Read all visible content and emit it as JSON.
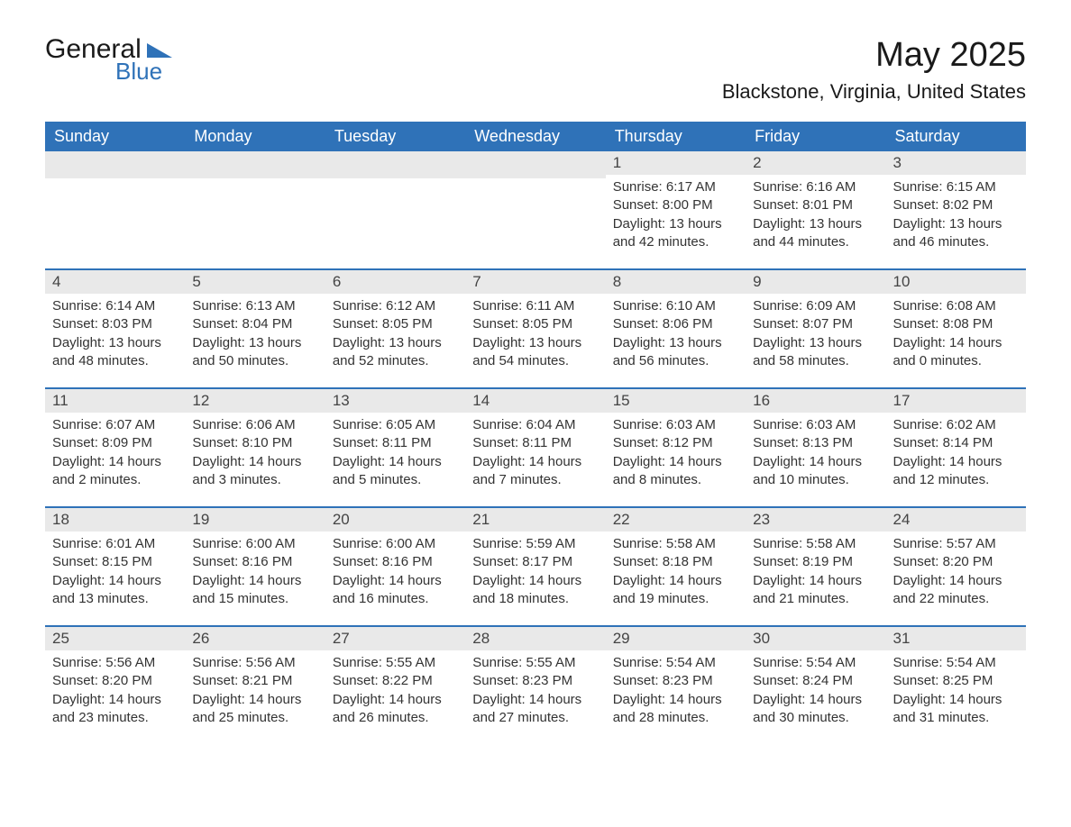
{
  "logo": {
    "general": "General",
    "blue": "Blue"
  },
  "title": "May 2025",
  "location": "Blackstone, Virginia, United States",
  "day_headers": [
    "Sunday",
    "Monday",
    "Tuesday",
    "Wednesday",
    "Thursday",
    "Friday",
    "Saturday"
  ],
  "colors": {
    "brand_blue": "#2f72b8",
    "header_row_bg": "#e9e9e9",
    "text": "#333333"
  },
  "weeks": [
    [
      {
        "empty": true
      },
      {
        "empty": true
      },
      {
        "empty": true
      },
      {
        "empty": true
      },
      {
        "n": "1",
        "sunrise": "Sunrise: 6:17 AM",
        "sunset": "Sunset: 8:00 PM",
        "daylight1": "Daylight: 13 hours",
        "daylight2": "and 42 minutes."
      },
      {
        "n": "2",
        "sunrise": "Sunrise: 6:16 AM",
        "sunset": "Sunset: 8:01 PM",
        "daylight1": "Daylight: 13 hours",
        "daylight2": "and 44 minutes."
      },
      {
        "n": "3",
        "sunrise": "Sunrise: 6:15 AM",
        "sunset": "Sunset: 8:02 PM",
        "daylight1": "Daylight: 13 hours",
        "daylight2": "and 46 minutes."
      }
    ],
    [
      {
        "n": "4",
        "sunrise": "Sunrise: 6:14 AM",
        "sunset": "Sunset: 8:03 PM",
        "daylight1": "Daylight: 13 hours",
        "daylight2": "and 48 minutes."
      },
      {
        "n": "5",
        "sunrise": "Sunrise: 6:13 AM",
        "sunset": "Sunset: 8:04 PM",
        "daylight1": "Daylight: 13 hours",
        "daylight2": "and 50 minutes."
      },
      {
        "n": "6",
        "sunrise": "Sunrise: 6:12 AM",
        "sunset": "Sunset: 8:05 PM",
        "daylight1": "Daylight: 13 hours",
        "daylight2": "and 52 minutes."
      },
      {
        "n": "7",
        "sunrise": "Sunrise: 6:11 AM",
        "sunset": "Sunset: 8:05 PM",
        "daylight1": "Daylight: 13 hours",
        "daylight2": "and 54 minutes."
      },
      {
        "n": "8",
        "sunrise": "Sunrise: 6:10 AM",
        "sunset": "Sunset: 8:06 PM",
        "daylight1": "Daylight: 13 hours",
        "daylight2": "and 56 minutes."
      },
      {
        "n": "9",
        "sunrise": "Sunrise: 6:09 AM",
        "sunset": "Sunset: 8:07 PM",
        "daylight1": "Daylight: 13 hours",
        "daylight2": "and 58 minutes."
      },
      {
        "n": "10",
        "sunrise": "Sunrise: 6:08 AM",
        "sunset": "Sunset: 8:08 PM",
        "daylight1": "Daylight: 14 hours",
        "daylight2": "and 0 minutes."
      }
    ],
    [
      {
        "n": "11",
        "sunrise": "Sunrise: 6:07 AM",
        "sunset": "Sunset: 8:09 PM",
        "daylight1": "Daylight: 14 hours",
        "daylight2": "and 2 minutes."
      },
      {
        "n": "12",
        "sunrise": "Sunrise: 6:06 AM",
        "sunset": "Sunset: 8:10 PM",
        "daylight1": "Daylight: 14 hours",
        "daylight2": "and 3 minutes."
      },
      {
        "n": "13",
        "sunrise": "Sunrise: 6:05 AM",
        "sunset": "Sunset: 8:11 PM",
        "daylight1": "Daylight: 14 hours",
        "daylight2": "and 5 minutes."
      },
      {
        "n": "14",
        "sunrise": "Sunrise: 6:04 AM",
        "sunset": "Sunset: 8:11 PM",
        "daylight1": "Daylight: 14 hours",
        "daylight2": "and 7 minutes."
      },
      {
        "n": "15",
        "sunrise": "Sunrise: 6:03 AM",
        "sunset": "Sunset: 8:12 PM",
        "daylight1": "Daylight: 14 hours",
        "daylight2": "and 8 minutes."
      },
      {
        "n": "16",
        "sunrise": "Sunrise: 6:03 AM",
        "sunset": "Sunset: 8:13 PM",
        "daylight1": "Daylight: 14 hours",
        "daylight2": "and 10 minutes."
      },
      {
        "n": "17",
        "sunrise": "Sunrise: 6:02 AM",
        "sunset": "Sunset: 8:14 PM",
        "daylight1": "Daylight: 14 hours",
        "daylight2": "and 12 minutes."
      }
    ],
    [
      {
        "n": "18",
        "sunrise": "Sunrise: 6:01 AM",
        "sunset": "Sunset: 8:15 PM",
        "daylight1": "Daylight: 14 hours",
        "daylight2": "and 13 minutes."
      },
      {
        "n": "19",
        "sunrise": "Sunrise: 6:00 AM",
        "sunset": "Sunset: 8:16 PM",
        "daylight1": "Daylight: 14 hours",
        "daylight2": "and 15 minutes."
      },
      {
        "n": "20",
        "sunrise": "Sunrise: 6:00 AM",
        "sunset": "Sunset: 8:16 PM",
        "daylight1": "Daylight: 14 hours",
        "daylight2": "and 16 minutes."
      },
      {
        "n": "21",
        "sunrise": "Sunrise: 5:59 AM",
        "sunset": "Sunset: 8:17 PM",
        "daylight1": "Daylight: 14 hours",
        "daylight2": "and 18 minutes."
      },
      {
        "n": "22",
        "sunrise": "Sunrise: 5:58 AM",
        "sunset": "Sunset: 8:18 PM",
        "daylight1": "Daylight: 14 hours",
        "daylight2": "and 19 minutes."
      },
      {
        "n": "23",
        "sunrise": "Sunrise: 5:58 AM",
        "sunset": "Sunset: 8:19 PM",
        "daylight1": "Daylight: 14 hours",
        "daylight2": "and 21 minutes."
      },
      {
        "n": "24",
        "sunrise": "Sunrise: 5:57 AM",
        "sunset": "Sunset: 8:20 PM",
        "daylight1": "Daylight: 14 hours",
        "daylight2": "and 22 minutes."
      }
    ],
    [
      {
        "n": "25",
        "sunrise": "Sunrise: 5:56 AM",
        "sunset": "Sunset: 8:20 PM",
        "daylight1": "Daylight: 14 hours",
        "daylight2": "and 23 minutes."
      },
      {
        "n": "26",
        "sunrise": "Sunrise: 5:56 AM",
        "sunset": "Sunset: 8:21 PM",
        "daylight1": "Daylight: 14 hours",
        "daylight2": "and 25 minutes."
      },
      {
        "n": "27",
        "sunrise": "Sunrise: 5:55 AM",
        "sunset": "Sunset: 8:22 PM",
        "daylight1": "Daylight: 14 hours",
        "daylight2": "and 26 minutes."
      },
      {
        "n": "28",
        "sunrise": "Sunrise: 5:55 AM",
        "sunset": "Sunset: 8:23 PM",
        "daylight1": "Daylight: 14 hours",
        "daylight2": "and 27 minutes."
      },
      {
        "n": "29",
        "sunrise": "Sunrise: 5:54 AM",
        "sunset": "Sunset: 8:23 PM",
        "daylight1": "Daylight: 14 hours",
        "daylight2": "and 28 minutes."
      },
      {
        "n": "30",
        "sunrise": "Sunrise: 5:54 AM",
        "sunset": "Sunset: 8:24 PM",
        "daylight1": "Daylight: 14 hours",
        "daylight2": "and 30 minutes."
      },
      {
        "n": "31",
        "sunrise": "Sunrise: 5:54 AM",
        "sunset": "Sunset: 8:25 PM",
        "daylight1": "Daylight: 14 hours",
        "daylight2": "and 31 minutes."
      }
    ]
  ]
}
